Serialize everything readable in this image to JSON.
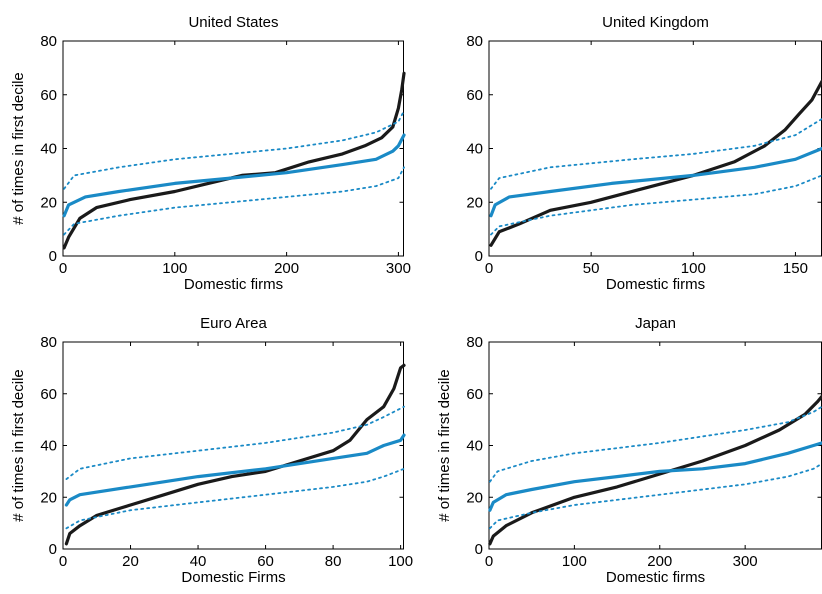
{
  "colors": {
    "actual": "#1a1a1a",
    "expected": "#1a8ac6",
    "band": "#1a8ac6"
  },
  "chart_data": [
    {
      "type": "line",
      "title": "United States",
      "xlabel": "Domestic firms",
      "ylabel": "# of times in first decile",
      "xlim": [
        0,
        305
      ],
      "ylim": [
        0,
        80
      ],
      "xticks": [
        0,
        100,
        200,
        300
      ],
      "yticks": [
        0,
        20,
        40,
        60,
        80
      ],
      "series": [
        {
          "role": "actual",
          "x": [
            1,
            5,
            15,
            30,
            60,
            100,
            130,
            160,
            190,
            220,
            250,
            270,
            285,
            295,
            300,
            303,
            305
          ],
          "y": [
            3,
            7,
            14,
            18,
            21,
            24,
            27,
            30,
            31,
            35,
            38,
            41,
            44,
            48,
            55,
            62,
            68
          ]
        },
        {
          "role": "expected",
          "x": [
            1,
            5,
            20,
            50,
            100,
            150,
            200,
            250,
            280,
            295,
            300,
            305
          ],
          "y": [
            15,
            19,
            22,
            24,
            27,
            29,
            31,
            34,
            36,
            39,
            41,
            45
          ]
        },
        {
          "role": "upper",
          "x": [
            1,
            10,
            50,
            100,
            150,
            200,
            250,
            280,
            300,
            305
          ],
          "y": [
            25,
            30,
            33,
            36,
            38,
            40,
            43,
            46,
            50,
            54
          ]
        },
        {
          "role": "lower",
          "x": [
            1,
            10,
            50,
            100,
            150,
            200,
            250,
            280,
            300,
            305
          ],
          "y": [
            8,
            12,
            15,
            18,
            20,
            22,
            24,
            26,
            29,
            33
          ]
        }
      ]
    },
    {
      "type": "line",
      "title": "United Kingdom",
      "xlabel": "Domestic firms",
      "ylabel": "",
      "xlim": [
        0,
        163
      ],
      "ylim": [
        0,
        80
      ],
      "xticks": [
        0,
        50,
        100,
        150
      ],
      "yticks": [
        0,
        20,
        40,
        60,
        80
      ],
      "series": [
        {
          "role": "actual",
          "x": [
            1,
            5,
            15,
            30,
            50,
            75,
            100,
            120,
            135,
            145,
            152,
            158,
            163
          ],
          "y": [
            4,
            9,
            12,
            17,
            20,
            25,
            30,
            35,
            41,
            47,
            53,
            58,
            65
          ]
        },
        {
          "role": "expected",
          "x": [
            1,
            3,
            10,
            30,
            60,
            100,
            130,
            150,
            163
          ],
          "y": [
            15,
            19,
            22,
            24,
            27,
            30,
            33,
            36,
            40
          ]
        },
        {
          "role": "upper",
          "x": [
            1,
            5,
            30,
            70,
            100,
            130,
            150,
            163
          ],
          "y": [
            25,
            29,
            33,
            36,
            38,
            41,
            45,
            51
          ]
        },
        {
          "role": "lower",
          "x": [
            1,
            5,
            30,
            70,
            100,
            130,
            150,
            163
          ],
          "y": [
            8,
            11,
            15,
            19,
            21,
            23,
            26,
            30
          ]
        }
      ]
    },
    {
      "type": "line",
      "title": "Euro Area",
      "xlabel": "Domestic Firms",
      "ylabel": "# of times in first decile",
      "xlim": [
        0,
        101
      ],
      "ylim": [
        0,
        80
      ],
      "xticks": [
        0,
        20,
        40,
        60,
        80,
        100
      ],
      "yticks": [
        0,
        20,
        40,
        60,
        80
      ],
      "series": [
        {
          "role": "actual",
          "x": [
            1,
            2,
            5,
            10,
            20,
            30,
            40,
            50,
            60,
            70,
            80,
            85,
            90,
            95,
            98,
            100,
            101
          ],
          "y": [
            2,
            6,
            9,
            13,
            17,
            21,
            25,
            28,
            30,
            34,
            38,
            42,
            50,
            55,
            62,
            70,
            71
          ]
        },
        {
          "role": "expected",
          "x": [
            1,
            2,
            5,
            20,
            40,
            60,
            80,
            90,
            95,
            100,
            101
          ],
          "y": [
            17,
            19,
            21,
            24,
            28,
            31,
            35,
            37,
            40,
            42,
            44
          ]
        },
        {
          "role": "upper",
          "x": [
            1,
            5,
            20,
            40,
            60,
            80,
            90,
            95,
            101
          ],
          "y": [
            27,
            31,
            35,
            38,
            41,
            45,
            48,
            51,
            55
          ]
        },
        {
          "role": "lower",
          "x": [
            1,
            5,
            20,
            40,
            60,
            80,
            90,
            95,
            101
          ],
          "y": [
            8,
            11,
            15,
            18,
            21,
            24,
            26,
            28,
            31
          ]
        }
      ]
    },
    {
      "type": "line",
      "title": "Japan",
      "xlabel": "Domestic firms",
      "ylabel": "# of times in first decile",
      "xlim": [
        0,
        390
      ],
      "ylim": [
        0,
        80
      ],
      "xticks": [
        0,
        100,
        200,
        300
      ],
      "yticks": [
        0,
        20,
        40,
        60,
        80
      ],
      "series": [
        {
          "role": "actual",
          "x": [
            1,
            5,
            20,
            50,
            100,
            150,
            200,
            250,
            300,
            340,
            370,
            385,
            390
          ],
          "y": [
            2,
            5,
            9,
            14,
            20,
            24,
            29,
            34,
            40,
            46,
            52,
            57,
            59
          ]
        },
        {
          "role": "expected",
          "x": [
            1,
            5,
            20,
            50,
            100,
            150,
            200,
            250,
            300,
            350,
            380,
            390
          ],
          "y": [
            15,
            18,
            21,
            23,
            26,
            28,
            30,
            31,
            33,
            37,
            40,
            41
          ]
        },
        {
          "role": "upper",
          "x": [
            1,
            10,
            50,
            100,
            200,
            300,
            350,
            380,
            390
          ],
          "y": [
            26,
            30,
            34,
            37,
            41,
            46,
            49,
            53,
            55
          ]
        },
        {
          "role": "lower",
          "x": [
            1,
            10,
            50,
            100,
            200,
            300,
            350,
            380,
            390
          ],
          "y": [
            8,
            11,
            14,
            17,
            21,
            25,
            28,
            31,
            33
          ]
        }
      ]
    }
  ]
}
